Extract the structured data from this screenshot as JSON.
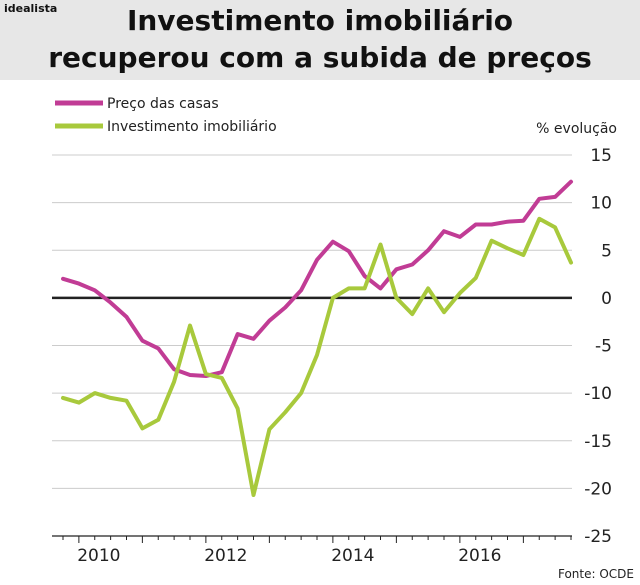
{
  "brand": "idealista",
  "header": {
    "title_line1": "Investimento imobiliário",
    "title_line2": "recuperou com a subida de preços"
  },
  "colors": {
    "house_price": "#c13c95",
    "investment": "#a8c93c",
    "zero_line": "#222222",
    "grid": "#cccccc"
  },
  "chart_data": {
    "type": "line",
    "ylabel": "% evolução",
    "ylim": [
      -25,
      15
    ],
    "yticks": [
      15,
      10,
      5,
      0,
      -5,
      -10,
      -15,
      -20,
      -25
    ],
    "xlim": [
      2009.75,
      2017.75
    ],
    "xticks": [
      2010,
      2012,
      2014,
      2016
    ],
    "grid": true,
    "legend_position": "top-left",
    "source": "Fonte: OCDE",
    "series": [
      {
        "name": "Preço das casas",
        "color": "#c13c95",
        "x": [
          2009.75,
          2010.0,
          2010.25,
          2010.5,
          2010.75,
          2011.0,
          2011.25,
          2011.5,
          2011.75,
          2012.0,
          2012.25,
          2012.5,
          2012.75,
          2013.0,
          2013.25,
          2013.5,
          2013.75,
          2014.0,
          2014.25,
          2014.5,
          2014.75,
          2015.0,
          2015.25,
          2015.5,
          2015.75,
          2016.0,
          2016.25,
          2016.5,
          2016.75,
          2017.0,
          2017.25,
          2017.5,
          2017.75
        ],
        "y": [
          2.0,
          1.5,
          0.8,
          -0.5,
          -2.0,
          -4.5,
          -5.3,
          -7.5,
          -8.1,
          -8.2,
          -7.8,
          -3.8,
          -4.3,
          -2.4,
          -1.0,
          0.8,
          4.0,
          5.9,
          4.9,
          2.3,
          1.0,
          3.0,
          3.5,
          5.0,
          7.0,
          6.4,
          7.7,
          7.7,
          8.0,
          8.1,
          10.4,
          10.6,
          12.2
        ]
      },
      {
        "name": "Investimento imobiliário",
        "color": "#a8c93c",
        "x": [
          2009.75,
          2010.0,
          2010.25,
          2010.5,
          2010.75,
          2011.0,
          2011.25,
          2011.5,
          2011.75,
          2012.0,
          2012.25,
          2012.5,
          2012.75,
          2013.0,
          2013.25,
          2013.5,
          2013.75,
          2014.0,
          2014.25,
          2014.5,
          2014.75,
          2015.0,
          2015.25,
          2015.5,
          2015.75,
          2016.0,
          2016.25,
          2016.5,
          2016.75,
          2017.0,
          2017.25,
          2017.5,
          2017.75
        ],
        "y": [
          -10.5,
          -11.0,
          -10.0,
          -10.5,
          -10.8,
          -13.7,
          -12.8,
          -8.8,
          -2.9,
          -8.0,
          -8.4,
          -11.6,
          -20.7,
          -13.8,
          -12.0,
          -10.0,
          -6.0,
          0.0,
          1.0,
          1.0,
          5.6,
          0.0,
          -1.7,
          1.0,
          -1.5,
          0.5,
          2.1,
          6.0,
          5.2,
          4.5,
          8.3,
          7.4,
          3.7
        ]
      }
    ]
  }
}
